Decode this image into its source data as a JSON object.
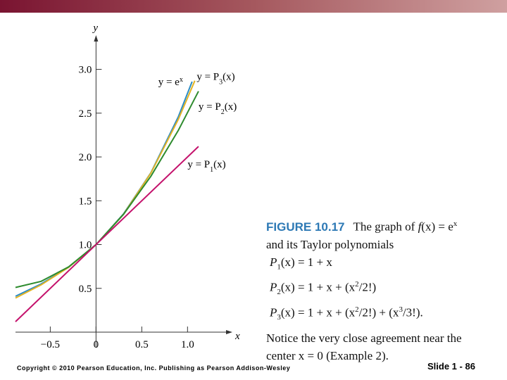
{
  "chart_data": {
    "type": "line",
    "xlim": [
      -0.88,
      1.49
    ],
    "ylim": [
      0,
      3.39
    ],
    "xlabel": "x",
    "ylabel": "y",
    "xticks": [
      {
        "value": -0.5,
        "label": "−0.5"
      },
      0,
      0.5,
      {
        "value": 1,
        "label": "1.0"
      }
    ],
    "yticks": [
      0.5,
      {
        "value": 1,
        "label": "1.0"
      },
      1.5,
      {
        "value": 2,
        "label": "2.0"
      },
      2.5,
      {
        "value": 3,
        "label": "3.0"
      }
    ],
    "series": [
      {
        "name": "e^x",
        "color": "#2b8cc4",
        "x": [
          -0.88,
          -0.6,
          -0.3,
          0,
          0.3,
          0.6,
          0.9,
          1.05
        ],
        "values": [
          0.41,
          0.55,
          0.74,
          1,
          1.35,
          1.82,
          2.46,
          2.86
        ]
      },
      {
        "name": "P3",
        "color": "#e2b324",
        "x": [
          -0.88,
          -0.6,
          -0.3,
          0,
          0.3,
          0.6,
          0.9,
          1.08
        ],
        "values": [
          0.39,
          0.54,
          0.74,
          1,
          1.345,
          1.816,
          2.43,
          2.87
        ]
      },
      {
        "name": "P2",
        "color": "#2e8b2e",
        "x": [
          -0.88,
          -0.6,
          -0.3,
          0,
          0.3,
          0.6,
          0.9,
          1.12
        ],
        "values": [
          0.51,
          0.58,
          0.745,
          1,
          1.345,
          1.78,
          2.305,
          2.75
        ]
      },
      {
        "name": "P1",
        "color": "#c4126c",
        "x": [
          -0.88,
          1.12
        ],
        "values": [
          0.12,
          2.12
        ]
      }
    ],
    "annotations": [
      {
        "parts": [
          "y = e",
          "x"
        ],
        "x": 0.68,
        "y": 2.82
      },
      {
        "parts": [
          "y = P",
          "3",
          "(x)"
        ],
        "x": 1.1,
        "y": 2.88
      },
      {
        "parts": [
          "y = P",
          "2",
          "(x)"
        ],
        "x": 1.12,
        "y": 2.54
      },
      {
        "parts": [
          "y = P",
          "1",
          "(x)"
        ],
        "x": 1.0,
        "y": 1.88
      }
    ]
  },
  "caption": {
    "figure": "FIGURE 10.17",
    "line1": [
      "The graph of ",
      "f",
      "(x) = e",
      "x"
    ],
    "line2": "and its Taylor polynomials",
    "p1": [
      "P",
      "1",
      "(x) = 1 + x"
    ],
    "p2": [
      "P",
      "2",
      "(x) = 1 + x + (x",
      "2",
      "/2!)"
    ],
    "p3": [
      "P",
      "3",
      "(x) = 1 + x + (x",
      "2",
      "/2!) + (x",
      "3",
      "/3!)."
    ],
    "note1": "Notice the very close agreement near the",
    "note2": "center x = 0 (Example 2)."
  },
  "footer": {
    "copyright": "Copyright © 2010 Pearson Education, Inc. Publishing as Pearson Addison-Wesley",
    "slide": "Slide 1 - 86"
  }
}
